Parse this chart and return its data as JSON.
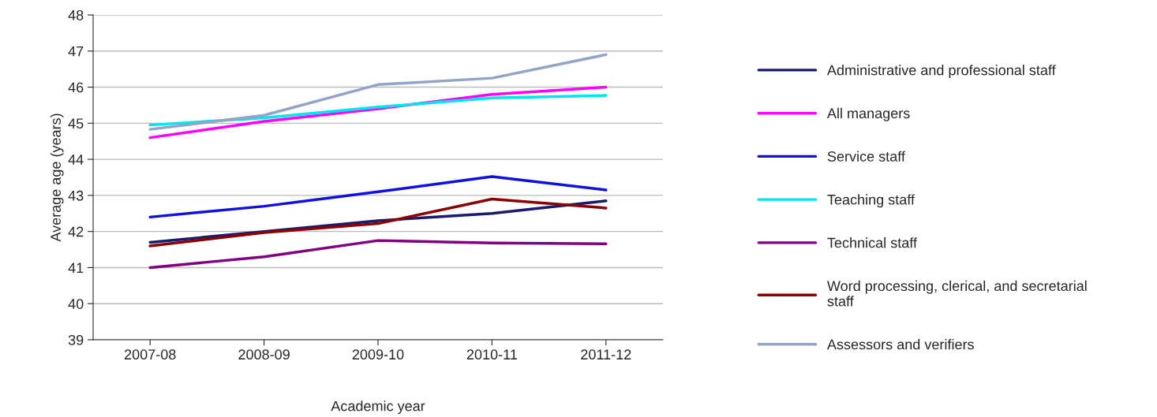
{
  "chart_data": {
    "type": "line",
    "xlabel": "Academic year",
    "ylabel": "Average age (years)",
    "categories": [
      "2007-08",
      "2008-09",
      "2009-10",
      "2010-11",
      "2011-12"
    ],
    "series": [
      {
        "name": "Administrative and professional staff",
        "color": "#1a1a6e",
        "values": [
          41.7,
          42.0,
          42.3,
          42.5,
          42.85
        ]
      },
      {
        "name": "All managers",
        "color": "#ff00ff",
        "values": [
          44.6,
          45.05,
          45.4,
          45.8,
          46.0
        ]
      },
      {
        "name": "Service staff",
        "color": "#1010e0",
        "values": [
          42.4,
          42.7,
          43.1,
          43.52,
          43.15
        ]
      },
      {
        "name": "Teaching staff",
        "color": "#00e5ee",
        "values": [
          44.95,
          45.15,
          45.45,
          45.7,
          45.77
        ]
      },
      {
        "name": "Technical staff",
        "color": "#800080",
        "values": [
          41.0,
          41.3,
          41.75,
          41.68,
          41.66
        ]
      },
      {
        "name": "Word processing, clerical, and secretarial\nstaff",
        "color": "#8b0000",
        "values": [
          41.6,
          41.97,
          42.22,
          42.9,
          42.65
        ]
      },
      {
        "name": "Assessors and verifiers",
        "color": "#94a3c8",
        "values": [
          44.83,
          45.22,
          46.07,
          46.25,
          46.9
        ]
      }
    ],
    "ylim": [
      39,
      48
    ],
    "yticks": [
      39,
      40,
      41,
      42,
      43,
      44,
      45,
      46,
      47,
      48
    ],
    "grid": "y",
    "legend": "right",
    "marker": "none",
    "line_style": "solid"
  }
}
